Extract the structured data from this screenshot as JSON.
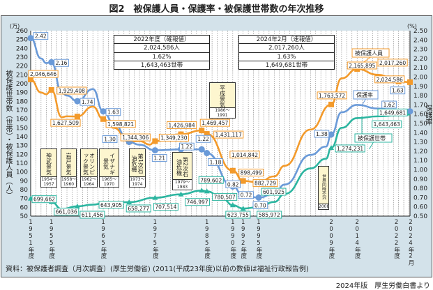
{
  "title": "図2　被保護人員・保護率・被保護世帯数の年次推移",
  "source": "資料：被保護者調査（月次調査）(厚生労働省) (2011(平成23年度)以前の数値は福祉行政報告例)",
  "credit": "2024年版　厚生労働白書より",
  "info_boxes": [
    {
      "rows": [
        "2022年度（確報値）",
        "2,024,586人",
        "1.62%",
        "1,643,463世帯"
      ]
    },
    {
      "rows": [
        "2024年2月（速報値）",
        "2,017,260人",
        "1.63%",
        "1,649,681世帯"
      ]
    }
  ],
  "periods": [
    {
      "name": "神武景気",
      "years": "1954〜1957"
    },
    {
      "name": "岩戸景気",
      "years": "1958〜1960"
    },
    {
      "name": "オリンピック景気",
      "years": "1962〜1964"
    },
    {
      "name": "イザナギ景気",
      "years": "1965〜1970"
    },
    {
      "name": "第1次石油危機",
      "years": "1973〜1974"
    },
    {
      "name": "第2次石油危機",
      "years": "1979〜1983"
    },
    {
      "name": "平成景気",
      "years": "1986〜1991"
    },
    {
      "name": "世界同時不況",
      "years": "2008"
    }
  ],
  "chart_data": {
    "type": "line",
    "title": "被保護人員・保護率・被保護世帯数の年次推移",
    "ylabel_left": "被保護世帯数（世帯）・被保護人員（人）",
    "ylabel_right": "保護率",
    "unit_left": "(万)",
    "unit_right": "(%)",
    "ylim_left": [
      50,
      260
    ],
    "ylim_right": [
      0.5,
      2.5
    ],
    "yticks_left": [
      50,
      60,
      70,
      80,
      90,
      100,
      110,
      120,
      130,
      140,
      150,
      160,
      170,
      180,
      190,
      200,
      210,
      220,
      230,
      240,
      250,
      260
    ],
    "yticks_right": [
      "0.50",
      "0.60",
      "0.70",
      "0.80",
      "0.90",
      "1.00",
      "1.10",
      "1.20",
      "1.30",
      "1.40",
      "1.50",
      "1.60",
      "1.70",
      "1.80",
      "1.90",
      "2.00",
      "2.10",
      "2.20",
      "2.30",
      "2.40",
      "2.50"
    ],
    "xticks": [
      {
        "x": 1951,
        "label": "1951年度"
      },
      {
        "x": 1955,
        "label": "1955年度"
      },
      {
        "x": 1965,
        "label": "1965年度"
      },
      {
        "x": 1975,
        "label": "1975年度"
      },
      {
        "x": 1985,
        "label": "1985年度"
      },
      {
        "x": 1990,
        "label": "1990年度"
      },
      {
        "x": 1992,
        "label": "1992年度"
      },
      {
        "x": 1995,
        "label": "1995年度"
      },
      {
        "x": 2009,
        "label": "2009年度"
      },
      {
        "x": 2014,
        "label": "2014年度"
      },
      {
        "x": 2022,
        "label": "2022年度"
      },
      {
        "x": 2024.2,
        "label": "2024年2月"
      }
    ],
    "series": [
      {
        "name": "被保護人員",
        "axis": "left",
        "color": "#f39a2b",
        "marker": "square",
        "x": [
          1951,
          1953,
          1954,
          1955,
          1957,
          1958,
          1960,
          1963,
          1965,
          1967,
          1970,
          1972,
          1974,
          1975,
          1980,
          1984,
          1985,
          1990,
          1992,
          1995,
          1998,
          2000,
          2005,
          2009,
          2011,
          2014,
          2018,
          2022,
          2024.2
        ],
        "y": [
          204.7,
          190,
          188,
          192.9,
          162,
          163,
          162.8,
          174,
          159.9,
          150,
          134.4,
          135,
          131,
          134.9,
          142.7,
          147,
          143.1,
          101.5,
          89.8,
          88.2,
          95,
          107,
          148,
          176.4,
          206,
          216.6,
          210,
          202.5,
          201.7
        ],
        "marked": [
          1951,
          1955,
          1960,
          1965,
          1970,
          1975,
          1980,
          1984,
          1985,
          1990,
          1992,
          1995,
          2009,
          2014,
          2022,
          2024.2
        ],
        "labels": [
          {
            "x": 1951,
            "text": "2,046,646"
          },
          {
            "x": 1955,
            "text": "1,929,408"
          },
          {
            "x": 1960,
            "text": "1,627,509"
          },
          {
            "x": 1965,
            "text": "1,598,821"
          },
          {
            "x": 1970,
            "text": "1,344,306"
          },
          {
            "x": 1975,
            "text": "1,349,230"
          },
          {
            "x": 1980,
            "text": "1,426,984"
          },
          {
            "x": 1984,
            "text": "1,469,457"
          },
          {
            "x": 1985,
            "text": "1,431,117"
          },
          {
            "x": 1990,
            "text": "1,014,842"
          },
          {
            "x": 1992,
            "text": "898,499"
          },
          {
            "x": 1995,
            "text": "882,729"
          },
          {
            "x": 2009,
            "text": "1,763,572"
          },
          {
            "x": 2014,
            "text": "2,165,895"
          },
          {
            "x": 2024.2,
            "text": "2,017,260"
          },
          {
            "x": 2022,
            "text": "2,024,586"
          }
        ]
      },
      {
        "name": "保護率",
        "axis": "right",
        "color": "#6a9ad8",
        "marker": "circle",
        "x": [
          1951,
          1953,
          1954,
          1955,
          1957,
          1958,
          1960,
          1963,
          1965,
          1967,
          1970,
          1972,
          1975,
          1980,
          1984,
          1985,
          1990,
          1992,
          1995,
          1998,
          2000,
          2005,
          2008,
          2009,
          2011,
          2014,
          2018,
          2022,
          2024.2
        ],
        "y": [
          2.42,
          2.2,
          2.15,
          2.16,
          1.83,
          1.8,
          1.74,
          1.87,
          1.63,
          1.5,
          1.3,
          1.27,
          1.21,
          1.22,
          1.22,
          1.18,
          0.82,
          0.72,
          0.7,
          0.74,
          0.84,
          1.16,
          1.25,
          1.38,
          1.62,
          1.7,
          1.66,
          1.62,
          1.63
        ],
        "marked": [
          1951,
          1955,
          1960,
          1965,
          1970,
          1975,
          1980,
          1984,
          1985,
          1990,
          1992,
          1995,
          2009,
          2022,
          2024.2
        ],
        "labels": [
          {
            "x": 1951,
            "text": "2.42"
          },
          {
            "x": 1955,
            "text": "2.16"
          },
          {
            "x": 1960,
            "text": "1.74"
          },
          {
            "x": 1965,
            "text": "1.63"
          },
          {
            "x": 1970,
            "text": "1.30"
          },
          {
            "x": 1975,
            "text": "1.21"
          },
          {
            "x": 1980,
            "text": "1.22"
          },
          {
            "x": 1984,
            "text": "1.22"
          },
          {
            "x": 1985,
            "text": "1.18"
          },
          {
            "x": 1990,
            "text": "0.82"
          },
          {
            "x": 1992,
            "text": "0.72"
          },
          {
            "x": 1995,
            "text": "0.70"
          },
          {
            "x": 2009,
            "text": "1.38"
          },
          {
            "x": 2022,
            "text": "1.62"
          },
          {
            "x": 2024.2,
            "text": "1.63"
          }
        ]
      },
      {
        "name": "被保護世帯",
        "axis": "left",
        "color": "#2cb5a0",
        "marker": "triangle",
        "x": [
          1951,
          1953,
          1955,
          1957,
          1960,
          1963,
          1965,
          1970,
          1975,
          1980,
          1984,
          1985,
          1988,
          1990,
          1992,
          1995,
          1998,
          2000,
          2005,
          2008,
          2009,
          2011,
          2014,
          2018,
          2022,
          2024.2
        ],
        "y": [
          69.97,
          68,
          66.1,
          58,
          61.1,
          63,
          64.4,
          65.8,
          70.8,
          74.7,
          79.0,
          78.1,
          70,
          62.4,
          58.6,
          60.2,
          66,
          75,
          104,
          115,
          127.4,
          150,
          161,
          163,
          164.3,
          165.0
        ],
        "marked": [
          1951,
          1955,
          1960,
          1965,
          1970,
          1975,
          1980,
          1984,
          1985,
          1990,
          1992,
          1995,
          2009
        ],
        "labels": [
          {
            "x": 1951,
            "text": "699,662"
          },
          {
            "x": 1955,
            "text": "661,036"
          },
          {
            "x": 1960,
            "text": "611,456"
          },
          {
            "x": 1965,
            "text": "643,905"
          },
          {
            "x": 1970,
            "text": "658,277"
          },
          {
            "x": 1975,
            "text": "707,514"
          },
          {
            "x": 1980,
            "text": "746,997"
          },
          {
            "x": 1984,
            "text": "789,602"
          },
          {
            "x": 1985,
            "text": "780,507"
          },
          {
            "x": 1990,
            "text": "623,755"
          },
          {
            "x": 1992,
            "text": "585,972"
          },
          {
            "x": 1995,
            "text": "601,925"
          },
          {
            "x": 2009,
            "text": "1,274,231"
          },
          {
            "x": 2022,
            "text": "1,643,463"
          },
          {
            "x": 2024.2,
            "text": "1,649,681"
          }
        ]
      }
    ]
  }
}
